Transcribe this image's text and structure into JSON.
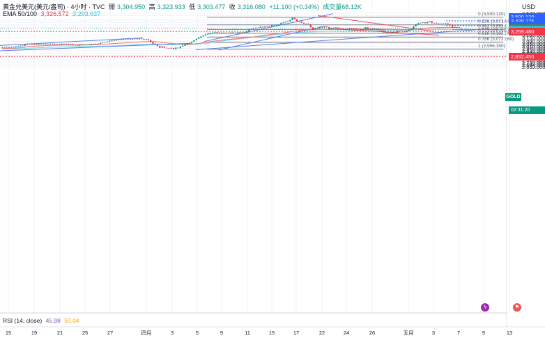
{
  "header": {
    "title": "黄金兑美元(美元/盎司) · 4小时 · TVC",
    "open_label": "開",
    "open": "3,304.950",
    "high_label": "高",
    "high": "3,323.933",
    "low_label": "低",
    "low": "3,303.477",
    "close_label": "收",
    "close": "3,316.080",
    "change": "+11.100 (+0.34%)",
    "volume": "成交量68.12K",
    "ema_label": "EMA 50/100",
    "ema50": "3,326.572",
    "ema100": "3,293.637",
    "currency": "USD"
  },
  "rsi": {
    "label": "RSI (14, close)",
    "value": "45.98",
    "ma": "50.04"
  },
  "symbol_badge": "GOLD",
  "countdown": "02:31:20",
  "colors": {
    "up": "#089981",
    "down": "#f23645",
    "ema50": "#f77c80",
    "ema100": "#80deea",
    "trendline": "#5b7ee5",
    "fib": "#787b86",
    "red_line": "#e84d59"
  },
  "chart_data": {
    "type": "candlestick",
    "y_axis_ticks": [
      "3,570.000",
      "3,530.000",
      "3,450.000",
      "3,410.000",
      "3,370.000",
      "3,330.000",
      "3,200.000",
      "3,150.000",
      "3,090.000",
      "3,050.000",
      "3,010.000",
      "2,970.000",
      "2,930.000",
      "2,890.000",
      "2,850.000",
      "2,810.000",
      "2,770.000",
      "2,730.000",
      "2,694.000",
      "2,659.000"
    ],
    "x_axis_ticks": [
      "15",
      "19",
      "21",
      "25",
      "27",
      "四月",
      "3",
      "5",
      "9",
      "11",
      "15",
      "17",
      "22",
      "24",
      "26",
      "五月",
      "3",
      "7",
      "9",
      "13"
    ],
    "fibonacci": [
      {
        "label": "0 (3,500.120)",
        "value": 3500.12
      },
      {
        "label": "0.236 (3,371.743)",
        "value": 3371.743
      },
      {
        "label": "0.382 (3,292.3…)",
        "value": 3292.3
      },
      {
        "label": "0.5 (3,228.135)",
        "value": 3228.135
      },
      {
        "label": "0.618 (3,163.947)",
        "value": 3163.947
      },
      {
        "label": "0.786 (3,072.560)",
        "value": 3072.56
      },
      {
        "label": "1 (2,956.150)",
        "value": 2956.15
      }
    ],
    "price_tags": [
      {
        "text": "3,500.120",
        "value": 3500.12,
        "color": "#2962ff"
      },
      {
        "text": "3,438.775",
        "value": 3438.775,
        "color": "#2962ff"
      },
      {
        "text": "3,357.920",
        "value": 3357.92,
        "color": "#2962ff"
      },
      {
        "text": "3,326.572",
        "value": 3326.572,
        "color": "#f23645"
      },
      {
        "text": "3,316.080",
        "value": 3316.08,
        "color": "#089981"
      },
      {
        "text": "3,293.637",
        "value": 3293.637,
        "color": "#26c6da"
      },
      {
        "text": "3,259.480",
        "value": 3259.48,
        "color": "#f23645"
      },
      {
        "text": "2,832.450",
        "value": 2832.45,
        "color": "#f23645"
      }
    ],
    "dashed_levels": [
      3438.775,
      3357.92,
      3259.48,
      2832.45
    ],
    "closes": [
      2988,
      2990,
      2994,
      2986,
      2996,
      2993,
      3005,
      3013,
      3019,
      3016,
      3035,
      3049,
      3044,
      3036,
      3043,
      3032,
      3045,
      3048,
      3051,
      3044,
      3039,
      3052,
      3046,
      3034,
      3040,
      3031,
      3048,
      3035,
      3046,
      3030,
      3043,
      3024,
      3030,
      3019,
      3040,
      3025,
      3035,
      3037,
      3029,
      3046,
      3047,
      3040,
      3050,
      3064,
      3071,
      3077,
      3084,
      3098,
      3108,
      3102,
      3113,
      3124,
      3115,
      3127,
      3133,
      3127,
      3121,
      3130,
      3136,
      3126,
      3140,
      3130,
      3118,
      3129,
      3113,
      3078,
      3051,
      3037,
      3012,
      2982,
      3003,
      2982,
      2972,
      2969,
      2979,
      2957,
      2983,
      2974,
      3002,
      3017,
      3037,
      3059,
      3066,
      3085,
      3110,
      3133,
      3154,
      3174,
      3192,
      3211,
      3215,
      3226,
      3237,
      3245,
      3239,
      3232,
      3239,
      3236,
      3236,
      3229,
      3241,
      3237,
      3236,
      3244,
      3235,
      3245,
      3243,
      3266,
      3298,
      3303,
      3311,
      3322,
      3323,
      3340,
      3328,
      3344,
      3345,
      3338,
      3364,
      3368,
      3362,
      3378,
      3400,
      3414,
      3426,
      3433,
      3455,
      3490,
      3467,
      3435,
      3427,
      3408,
      3391,
      3392,
      3382,
      3328,
      3290,
      3311,
      3308,
      3335,
      3324,
      3346,
      3333,
      3295,
      3321,
      3309,
      3325,
      3311,
      3308,
      3291,
      3298,
      3299,
      3314,
      3310,
      3311,
      3302,
      3302,
      3285,
      3296,
      3328,
      3300,
      3292,
      3306,
      3296,
      3290,
      3281,
      3270,
      3242,
      3245,
      3242,
      3231,
      3251,
      3244,
      3267,
      3264,
      3257,
      3251,
      3267,
      3293,
      3296,
      3346,
      3379,
      3399,
      3406,
      3413,
      3398,
      3423,
      3433,
      3401,
      3404,
      3395,
      3395,
      3394,
      3395,
      3399,
      3382,
      3371,
      3327,
      3331,
      3331,
      3319,
      3316
    ],
    "ema50": [
      2970,
      2971,
      2972,
      2973,
      2974,
      2975,
      2977,
      2980,
      2984,
      2987,
      2991,
      2996,
      3000,
      3004,
      3007,
      3009,
      3012,
      3014,
      3017,
      3020,
      3021,
      3022,
      3024,
      3025,
      3026,
      3026,
      3027,
      3028,
      3029,
      3029,
      3030,
      3030,
      3030,
      3030,
      3030,
      3030,
      3030,
      3031,
      3031,
      3032,
      3032,
      3033,
      3035,
      3037,
      3039,
      3041,
      3043,
      3047,
      3050,
      3052,
      3055,
      3058,
      3061,
      3063,
      3066,
      3070,
      3072,
      3074,
      3077,
      3078,
      3080,
      3082,
      3084,
      3086,
      3085,
      3085,
      3085,
      3083,
      3080,
      3076,
      3072,
      3068,
      3064,
      3059,
      3056,
      3052,
      3049,
      3046,
      3044,
      3043,
      3042,
      3042,
      3043,
      3044,
      3047,
      3051,
      3055,
      3060,
      3066,
      3072,
      3077,
      3083,
      3089,
      3095,
      3101,
      3106,
      3110,
      3115,
      3119,
      3124,
      3127,
      3130,
      3133,
      3137,
      3140,
      3143,
      3147,
      3150,
      3156,
      3162,
      3166,
      3172,
      3177,
      3183,
      3188,
      3193,
      3198,
      3203,
      3208,
      3214,
      3218,
      3223,
      3228,
      3233,
      3239,
      3245,
      3252,
      3259,
      3265,
      3270,
      3275,
      3280,
      3283,
      3285,
      3288,
      3288,
      3289,
      3290,
      3291,
      3293,
      3294,
      3296,
      3296,
      3296,
      3298,
      3299,
      3300,
      3300,
      3301,
      3301,
      3300,
      3300,
      3300,
      3301,
      3301,
      3301,
      3300,
      3300,
      3301,
      3302,
      3302,
      3302,
      3302,
      3302,
      3302,
      3302,
      3301,
      3299,
      3297,
      3296,
      3294,
      3292,
      3291,
      3291,
      3291,
      3290,
      3289,
      3290,
      3290,
      3292,
      3295,
      3298,
      3301,
      3306,
      3310,
      3313,
      3316,
      3319,
      3321,
      3322,
      3324,
      3325,
      3326,
      3327,
      3327,
      3327,
      3327,
      3327,
      3327,
      3326
    ],
    "ema100": [
      2960,
      2961,
      2962,
      2962,
      2963,
      2964,
      2964,
      2966,
      2967,
      2969,
      2970,
      2972,
      2974,
      2976,
      2978,
      2980,
      2982,
      2983,
      2985,
      2987,
      2988,
      2989,
      2990,
      2991,
      2992,
      2993,
      2994,
      2995,
      2996,
      2997,
      2997,
      2998,
      2998,
      2999,
      2999,
      3000,
      3001,
      3001,
      3002,
      3002,
      3003,
      3004,
      3005,
      3006,
      3007,
      3008,
      3010,
      3011,
      3013,
      3015,
      3017,
      3019,
      3021,
      3022,
      3024,
      3026,
      3028,
      3030,
      3032,
      3034,
      3036,
      3037,
      3039,
      3040,
      3041,
      3042,
      3042,
      3042,
      3042,
      3041,
      3040,
      3039,
      3038,
      3037,
      3036,
      3035,
      3035,
      3034,
      3034,
      3034,
      3034,
      3035,
      3035,
      3037,
      3039,
      3041,
      3044,
      3048,
      3052,
      3056,
      3061,
      3066,
      3072,
      3078,
      3083,
      3089,
      3094,
      3100,
      3105,
      3110,
      3115,
      3120,
      3125,
      3130,
      3135,
      3139,
      3144,
      3149,
      3153,
      3158,
      3162,
      3166,
      3171,
      3175,
      3180,
      3184,
      3188,
      3192,
      3196,
      3200,
      3204,
      3208,
      3212,
      3216,
      3220,
      3224,
      3228,
      3232,
      3235,
      3238,
      3241,
      3243,
      3245,
      3247,
      3249,
      3251,
      3253,
      3255,
      3256,
      3258,
      3259,
      3261,
      3262,
      3263,
      3264,
      3265,
      3266,
      3267,
      3268,
      3268,
      3269,
      3270,
      3271,
      3271,
      3272,
      3272,
      3273,
      3273,
      3274,
      3274,
      3275,
      3275,
      3276,
      3276,
      3276,
      3276,
      3276,
      3276,
      3276,
      3276,
      3276,
      3276,
      3276,
      3276,
      3277,
      3277,
      3278,
      3279,
      3280,
      3281,
      3283,
      3285,
      3287,
      3289,
      3290,
      3291,
      3292,
      3292,
      3293,
      3293,
      3293,
      3294,
      3294,
      3294,
      3294,
      3294,
      3294,
      3294
    ],
    "trendlines": [
      {
        "name": "upper-channel",
        "from": [
          0,
          3020
        ],
        "to": [
          205,
          3150
        ]
      },
      {
        "name": "lower-channel",
        "from": [
          0,
          2930
        ],
        "to": [
          275,
          3058
        ]
      },
      {
        "name": "main-support",
        "from": [
          281,
          2948
        ],
        "to": [
          700,
          3303
        ]
      },
      {
        "name": "rally-channel-upper",
        "from": [
          293,
          3088
        ],
        "to": [
          478,
          3560
        ]
      },
      {
        "name": "rally-channel-lower",
        "from": [
          314,
          2944
        ],
        "to": [
          464,
          3345
        ]
      }
    ],
    "red_lines": [
      {
        "name": "down-wedge-upper",
        "from": [
          456,
          3530
        ],
        "to": [
          623,
          3260
        ]
      },
      {
        "name": "down-wedge-lower",
        "from": [
          483,
          3300
        ],
        "to": [
          630,
          3197
        ]
      }
    ],
    "rsi_range": [
      0,
      100
    ]
  }
}
